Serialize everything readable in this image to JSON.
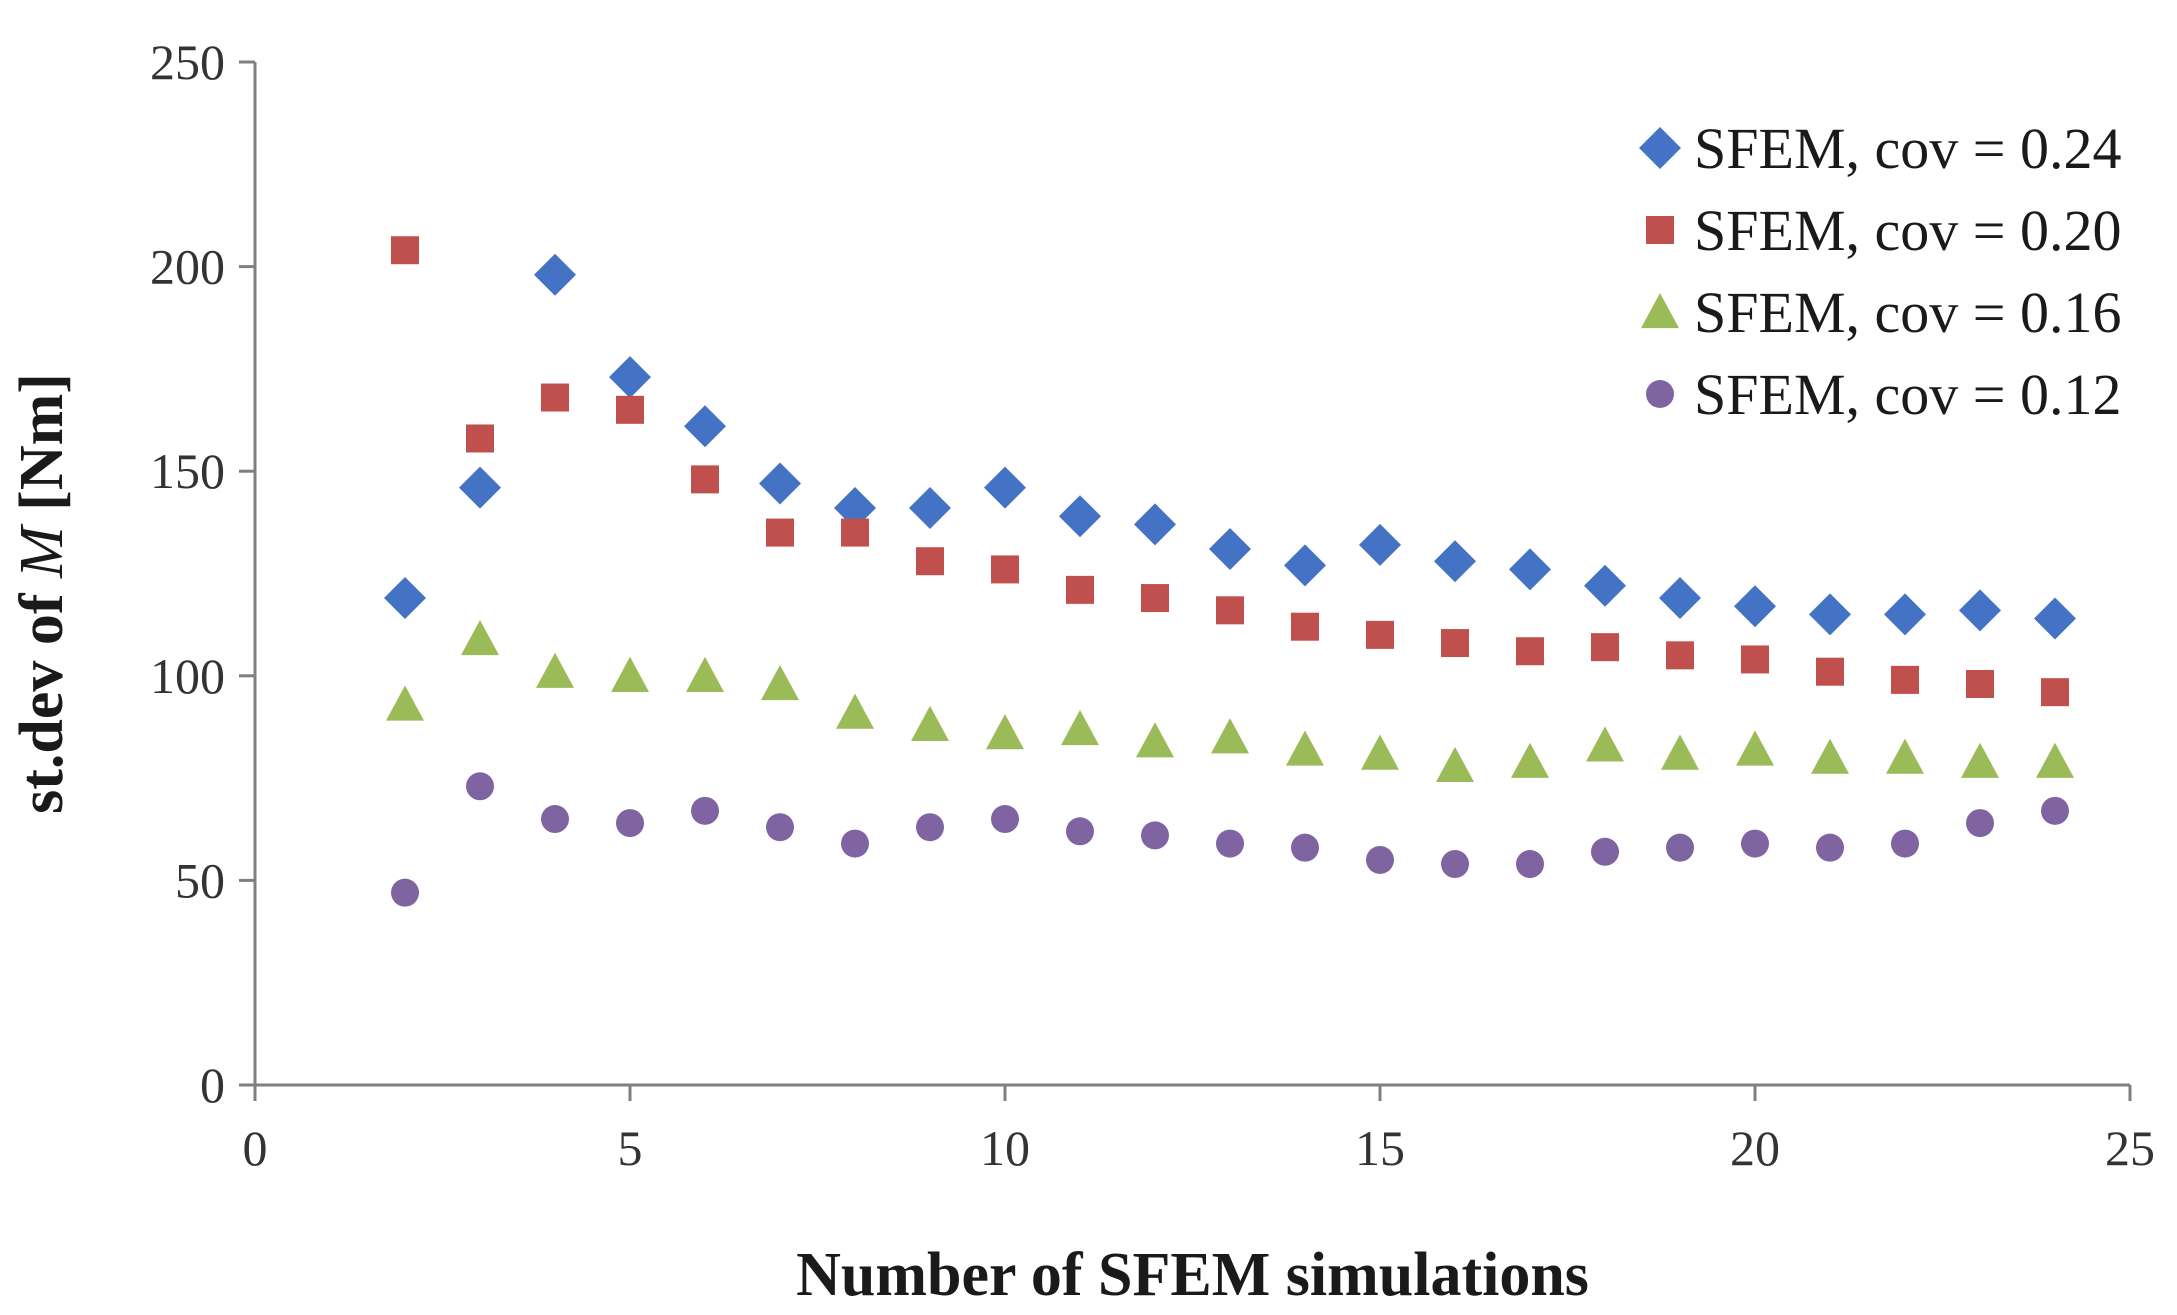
{
  "chart_data": {
    "type": "scatter",
    "title": "",
    "xlabel": "Number of SFEM simulations",
    "ylabel_prefix": "st.dev of ",
    "ylabel_var": "M",
    "ylabel_suffix": " [Nm]",
    "xlim": [
      0,
      25
    ],
    "ylim": [
      0,
      250
    ],
    "xticks": [
      0,
      5,
      10,
      15,
      20,
      25
    ],
    "yticks": [
      0,
      50,
      100,
      150,
      200,
      250
    ],
    "grid": false,
    "legend_position": "top-right",
    "x": [
      2,
      3,
      4,
      5,
      6,
      7,
      8,
      9,
      10,
      11,
      12,
      13,
      14,
      15,
      16,
      17,
      18,
      19,
      20,
      21,
      22,
      23,
      24
    ],
    "series": [
      {
        "name": "SFEM, cov = 0.24",
        "marker": "diamond",
        "color": "#4472C4",
        "values": [
          119,
          146,
          198,
          173,
          161,
          147,
          141,
          141,
          146,
          139,
          137,
          131,
          127,
          132,
          128,
          126,
          122,
          119,
          117,
          115,
          115,
          116,
          114
        ]
      },
      {
        "name": "SFEM, cov = 0.20",
        "marker": "square",
        "color": "#C0504D",
        "values": [
          204,
          158,
          168,
          165,
          148,
          135,
          135,
          128,
          126,
          121,
          119,
          116,
          112,
          110,
          108,
          106,
          107,
          105,
          104,
          101,
          99,
          98,
          96
        ]
      },
      {
        "name": "SFEM, cov = 0.16",
        "marker": "triangle",
        "color": "#9BBB59",
        "values": [
          93,
          109,
          101,
          100,
          100,
          98,
          91,
          88,
          86,
          87,
          84,
          85,
          82,
          81,
          78,
          79,
          83,
          81,
          82,
          80,
          80,
          79,
          79
        ]
      },
      {
        "name": "SFEM, cov = 0.12",
        "marker": "circle",
        "color": "#8064A2",
        "values": [
          47,
          73,
          65,
          64,
          67,
          63,
          59,
          63,
          65,
          62,
          61,
          59,
          58,
          55,
          54,
          54,
          57,
          58,
          59,
          58,
          59,
          64,
          67
        ]
      }
    ]
  }
}
